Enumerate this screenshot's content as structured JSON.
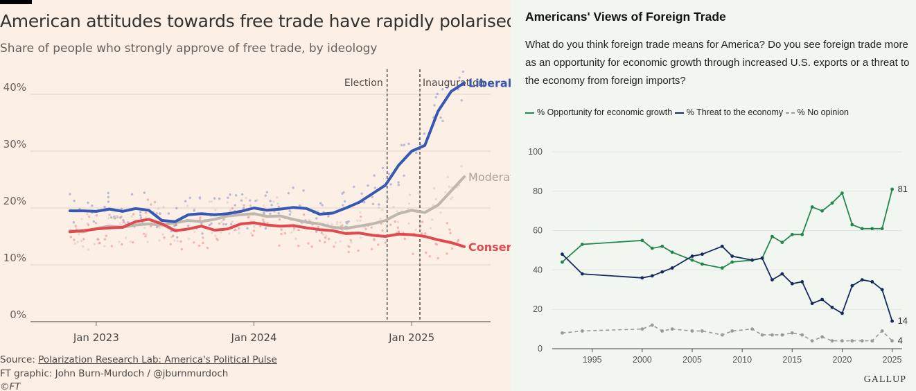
{
  "ft": {
    "title": "American attitudes towards free trade have rapidly polarised",
    "subtitle": "Share of people who strongly approve of free trade, by ideology",
    "source_prefix": "Source: ",
    "source_link": "Polarization Research Lab: America's Political Pulse",
    "credit": "FT graphic: John Burn-Murdoch / @jburnmurdoch",
    "copyright": "©FT"
  },
  "gallup": {
    "title": "Americans' Views of Foreign Trade",
    "question": "What do you think foreign trade means for America? Do you see foreign trade more as an opportunity for economic growth through increased U.S. exports or a threat to the economy from foreign imports?",
    "brand": "GALLUP"
  },
  "chart_data": [
    {
      "type": "line",
      "title": "American attitudes towards free trade have rapidly polarised",
      "subtitle": "Share of people who strongly approve of free trade, by ideology",
      "x_tick_labels": [
        "Jan 2023",
        "Jan 2024",
        "Jan 2025"
      ],
      "x_ticks": [
        "2023-01",
        "2024-01",
        "2025-01"
      ],
      "y_tick_labels": [
        "0%",
        "10%",
        "20%",
        "30%",
        "40%"
      ],
      "ylim": [
        0,
        45
      ],
      "xlim": [
        "2022-08",
        "2025-07"
      ],
      "grid": "horizontal",
      "annotations": [
        {
          "label": "Election",
          "x": "2024-11-05"
        },
        {
          "label": "Inauguration",
          "x": "2025-01-20"
        }
      ],
      "colors": {
        "Liberal": "#3658b2",
        "Moderate": "#bfb6ae",
        "Conservative": "#de4a4f"
      },
      "series": [
        {
          "name": "Liberal",
          "x": [
            "2022-11",
            "2022-12",
            "2023-01",
            "2023-02",
            "2023-03",
            "2023-04",
            "2023-05",
            "2023-06",
            "2023-07",
            "2023-08",
            "2023-09",
            "2023-10",
            "2023-11",
            "2023-12",
            "2024-01",
            "2024-02",
            "2024-03",
            "2024-04",
            "2024-05",
            "2024-06",
            "2024-07",
            "2024-08",
            "2024-09",
            "2024-10",
            "2024-11",
            "2024-12",
            "2025-01",
            "2025-02",
            "2025-03",
            "2025-04",
            "2025-05"
          ],
          "values": [
            19.5,
            19.5,
            19.4,
            19.8,
            19.4,
            19.9,
            19.6,
            17.8,
            17.6,
            18.8,
            19.0,
            18.8,
            19.0,
            19.4,
            20.0,
            19.6,
            19.8,
            20.1,
            19.9,
            18.9,
            19.1,
            20.0,
            21.0,
            22.5,
            24.0,
            27.5,
            30.0,
            31.0,
            37.0,
            40.5,
            42.0
          ]
        },
        {
          "name": "Moderate",
          "x": [
            "2022-11",
            "2022-12",
            "2023-01",
            "2023-02",
            "2023-03",
            "2023-04",
            "2023-05",
            "2023-06",
            "2023-07",
            "2023-08",
            "2023-09",
            "2023-10",
            "2023-11",
            "2023-12",
            "2024-01",
            "2024-02",
            "2024-03",
            "2024-04",
            "2024-05",
            "2024-06",
            "2024-07",
            "2024-08",
            "2024-09",
            "2024-10",
            "2024-11",
            "2024-12",
            "2025-01",
            "2025-02",
            "2025-03",
            "2025-04",
            "2025-05"
          ],
          "values": [
            16.0,
            15.8,
            16.4,
            16.8,
            16.6,
            17.0,
            17.2,
            17.0,
            17.4,
            17.8,
            17.6,
            18.0,
            18.6,
            18.8,
            19.0,
            18.5,
            18.6,
            18.0,
            17.5,
            17.2,
            16.6,
            16.4,
            16.8,
            17.2,
            17.8,
            19.0,
            19.6,
            19.2,
            20.5,
            23.0,
            25.5
          ]
        },
        {
          "name": "Conservative",
          "x": [
            "2022-11",
            "2022-12",
            "2023-01",
            "2023-02",
            "2023-03",
            "2023-04",
            "2023-05",
            "2023-06",
            "2023-07",
            "2023-08",
            "2023-09",
            "2023-10",
            "2023-11",
            "2023-12",
            "2024-01",
            "2024-02",
            "2024-03",
            "2024-04",
            "2024-05",
            "2024-06",
            "2024-07",
            "2024-08",
            "2024-09",
            "2024-10",
            "2024-11",
            "2024-12",
            "2025-01",
            "2025-02",
            "2025-03",
            "2025-04",
            "2025-05"
          ],
          "values": [
            15.8,
            16.0,
            16.3,
            16.5,
            16.6,
            17.6,
            18.0,
            17.2,
            16.0,
            16.3,
            16.8,
            16.1,
            16.3,
            17.2,
            17.4,
            17.0,
            16.8,
            16.9,
            16.5,
            16.2,
            16.0,
            15.5,
            15.6,
            15.2,
            15.0,
            15.4,
            15.3,
            15.0,
            14.4,
            13.9,
            13.2
          ]
        }
      ]
    },
    {
      "type": "line",
      "title": "Americans' Views of Foreign Trade",
      "x_ticks": [
        1995,
        2000,
        2005,
        2010,
        2015,
        2020,
        2025
      ],
      "y_ticks": [
        0,
        20,
        40,
        60,
        80,
        100
      ],
      "ylim": [
        0,
        100
      ],
      "xlim": [
        1991,
        2026
      ],
      "grid": "horizontal",
      "legend": "top",
      "colors": {
        "opportunity": "#23864d",
        "threat": "#152a5e",
        "no_opinion": "#9a9a9a"
      },
      "series": [
        {
          "name": "% Opportunity for economic growth",
          "x": [
            1992,
            1994,
            2000,
            2001,
            2002,
            2003,
            2005,
            2006,
            2008,
            2009,
            2011,
            2012,
            2013,
            2014,
            2015,
            2016,
            2017,
            2018,
            2019,
            2020,
            2021,
            2022,
            2023,
            2024,
            2025
          ],
          "values": [
            44,
            53,
            55,
            51,
            52,
            49,
            45,
            43,
            41,
            44,
            45,
            46,
            57,
            54,
            58,
            58,
            72,
            70,
            74,
            79,
            63,
            61,
            61,
            61,
            81
          ]
        },
        {
          "name": "% Threat to the economy",
          "x": [
            1992,
            1994,
            2000,
            2001,
            2002,
            2003,
            2005,
            2006,
            2008,
            2009,
            2011,
            2012,
            2013,
            2014,
            2015,
            2016,
            2017,
            2018,
            2019,
            2020,
            2021,
            2022,
            2023,
            2024,
            2025
          ],
          "values": [
            48,
            38,
            36,
            37,
            39,
            41,
            47,
            48,
            52,
            47,
            45,
            46,
            35,
            38,
            33,
            34,
            23,
            25,
            21,
            18,
            32,
            35,
            34,
            30,
            14
          ]
        },
        {
          "name": "% No opinion",
          "x": [
            1992,
            1994,
            2000,
            2001,
            2002,
            2003,
            2005,
            2006,
            2008,
            2009,
            2011,
            2012,
            2013,
            2014,
            2015,
            2016,
            2017,
            2018,
            2019,
            2020,
            2021,
            2022,
            2023,
            2024,
            2025
          ],
          "values": [
            8,
            9,
            10,
            12,
            9,
            10,
            9,
            9,
            7,
            9,
            10,
            7,
            7,
            7,
            8,
            7,
            4,
            6,
            4,
            4,
            4,
            4,
            4,
            9,
            4
          ]
        }
      ],
      "end_labels": [
        {
          "text": "81",
          "series": 0
        },
        {
          "text": "14",
          "series": 1
        },
        {
          "text": "4",
          "series": 2
        }
      ]
    }
  ]
}
